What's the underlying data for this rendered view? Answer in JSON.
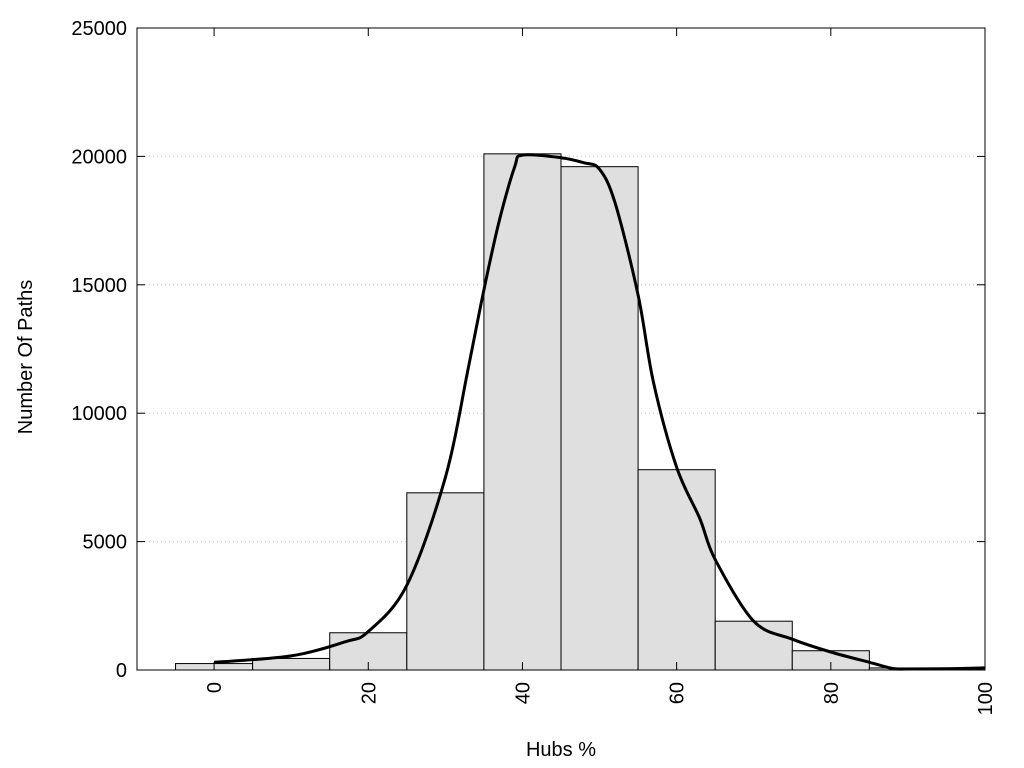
{
  "chart_data": {
    "type": "bar",
    "title": "",
    "xlabel": "Hubs %",
    "ylabel": "Number Of Paths",
    "xlim": [
      -10,
      100
    ],
    "ylim": [
      0,
      25000
    ],
    "bin_width": 10,
    "x_ticks": [
      0,
      20,
      40,
      60,
      80,
      100
    ],
    "y_ticks": [
      0,
      5000,
      10000,
      15000,
      20000,
      25000
    ],
    "grid": "horizontal-dotted",
    "bars": {
      "centers": [
        0,
        10,
        20,
        30,
        40,
        50,
        60,
        70,
        80,
        90
      ],
      "values": [
        250,
        450,
        1450,
        6900,
        20100,
        19600,
        7800,
        1900,
        750,
        80
      ]
    },
    "curve": {
      "x": [
        0,
        10,
        17,
        20,
        25,
        30,
        33,
        35,
        37,
        39,
        40,
        45,
        48,
        50,
        52,
        55,
        57,
        60,
        63,
        65,
        70,
        75,
        80,
        85,
        88,
        90,
        95,
        100
      ],
      "y": [
        300,
        550,
        1100,
        1500,
        3300,
        7500,
        11800,
        14800,
        17500,
        19600,
        20050,
        19950,
        19750,
        19500,
        18200,
        14600,
        11200,
        7900,
        5900,
        4300,
        1900,
        1200,
        700,
        300,
        60,
        40,
        50,
        80
      ]
    },
    "colors": {
      "bar_fill": "#dfdfdf",
      "bar_stroke": "#000000",
      "curve": "#000000",
      "grid": "#c8c8c8"
    }
  }
}
